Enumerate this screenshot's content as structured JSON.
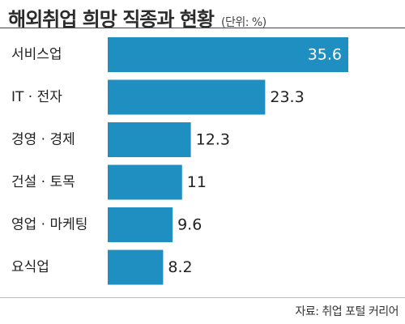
{
  "header": {
    "title": "해외취업 희망 직종과 현황",
    "unit": "(단위: %)"
  },
  "source": "자료: 취업 포털 커리어",
  "colors": {
    "bar": "#1f8fc2",
    "text": "#222222",
    "inside_label": "#ffffff"
  },
  "chart_data": {
    "type": "bar",
    "orientation": "horizontal",
    "categories": [
      "서비스업",
      "IT · 전자",
      "경영 · 경제",
      "건설 · 토목",
      "영업 · 마케팅",
      "요식업"
    ],
    "values": [
      35.6,
      23.3,
      12.3,
      11,
      9.6,
      8.2
    ],
    "value_labels": [
      "35.6",
      "23.3",
      "12.3",
      "11",
      "9.6",
      "8.2"
    ],
    "xlim": [
      0,
      35.6
    ],
    "grid": false,
    "legend": "none"
  }
}
